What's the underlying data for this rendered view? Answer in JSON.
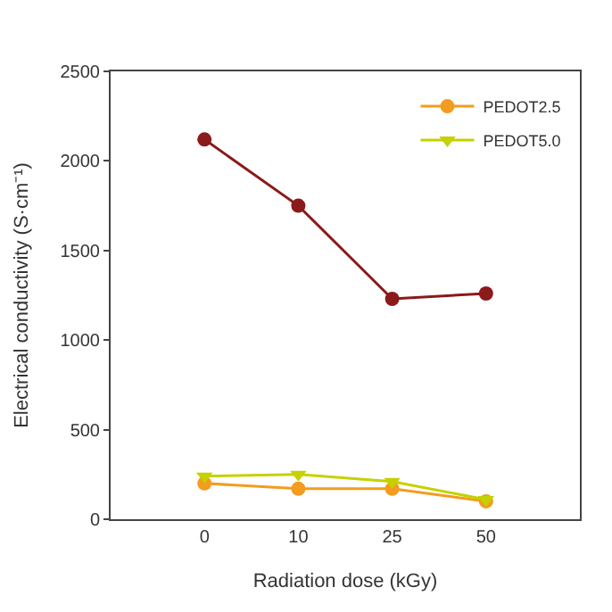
{
  "chart_data": {
    "type": "line",
    "xlabel": "Radiation dose (kGy)",
    "ylabel": "Electrical conductivity (S·cm⁻¹)",
    "categories": [
      "0",
      "10",
      "25",
      "50"
    ],
    "series": [
      {
        "color": "#8b1a1a",
        "marker": "circle",
        "values": [
          2120,
          1750,
          1230,
          1260
        ]
      },
      {
        "name": "PEDOT2.5",
        "color": "#f39c1f",
        "marker": "circle",
        "values": [
          200,
          170,
          170,
          100
        ]
      },
      {
        "name": "PEDOT5.0",
        "color": "#c5d100",
        "marker": "triangle",
        "values": [
          240,
          250,
          210,
          110
        ]
      }
    ],
    "ylim": [
      0,
      2500
    ],
    "yticks": [
      0,
      500,
      1000,
      1500,
      2000,
      2500
    ],
    "legend": "top right",
    "line_style": "solid"
  }
}
